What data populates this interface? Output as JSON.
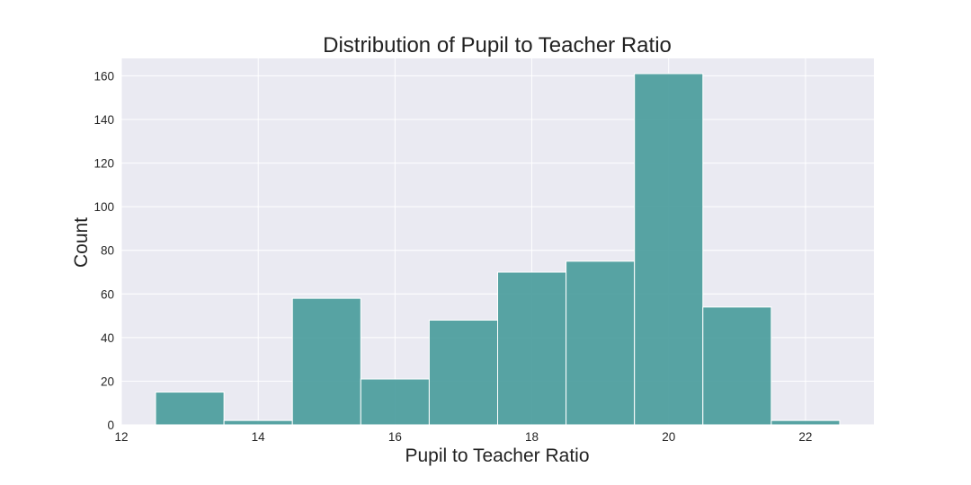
{
  "chart_data": {
    "type": "bar",
    "title": "Distribution of Pupil to Teacher Ratio",
    "xlabel": "Pupil to Teacher Ratio",
    "ylabel": "Count",
    "xlim": [
      12,
      23
    ],
    "ylim": [
      0,
      168
    ],
    "xticks": [
      12,
      14,
      16,
      18,
      20,
      22
    ],
    "yticks": [
      0,
      20,
      40,
      60,
      80,
      100,
      120,
      140,
      160
    ],
    "bins": [
      {
        "x0": 12.5,
        "x1": 13.5,
        "count": 15
      },
      {
        "x0": 13.5,
        "x1": 14.5,
        "count": 2
      },
      {
        "x0": 14.5,
        "x1": 15.5,
        "count": 58
      },
      {
        "x0": 15.5,
        "x1": 16.5,
        "count": 21
      },
      {
        "x0": 16.5,
        "x1": 17.5,
        "count": 48
      },
      {
        "x0": 17.5,
        "x1": 18.5,
        "count": 70
      },
      {
        "x0": 18.5,
        "x1": 19.5,
        "count": 75
      },
      {
        "x0": 19.5,
        "x1": 20.5,
        "count": 161
      },
      {
        "x0": 20.5,
        "x1": 21.5,
        "count": 54
      },
      {
        "x0": 21.5,
        "x1": 22.5,
        "count": 2
      }
    ],
    "grid": true,
    "colors": {
      "bar": "#4a9c9c",
      "plot_background": "#eaeaf2",
      "grid": "#ffffff"
    }
  }
}
